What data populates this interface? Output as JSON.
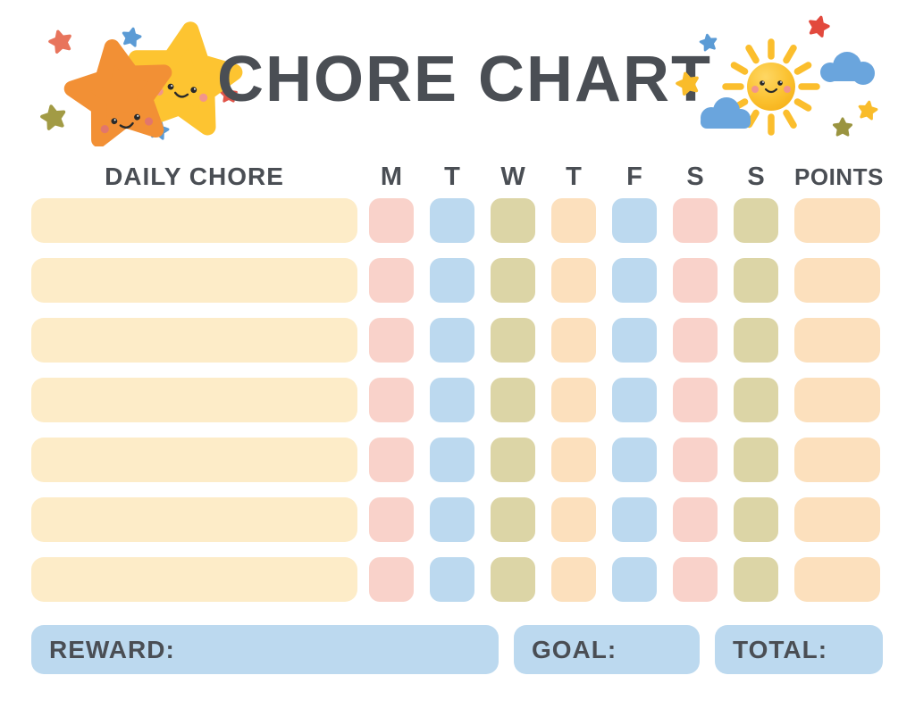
{
  "title": "CHORE CHART",
  "colors": {
    "text": "#4a4e54",
    "pink": "#f9d2ca",
    "blue": "#bcd9ef",
    "olive": "#dcd5a6",
    "peach": "#fce0bd",
    "cream": "#fdecc8",
    "footer_blue": "#bcd9ef"
  },
  "table": {
    "chore_header": "DAILY CHORE",
    "day_headers": [
      "M",
      "T",
      "W",
      "T",
      "F",
      "S",
      "S"
    ],
    "points_header": "POINTS",
    "row_count": 7,
    "chore_cell_color": "cream",
    "day_cell_colors": [
      "pink",
      "blue",
      "olive",
      "peach",
      "blue",
      "pink",
      "olive"
    ],
    "points_cell_color": "peach",
    "rows": [
      {
        "chore": "",
        "days": [
          "",
          "",
          "",
          "",
          "",
          "",
          ""
        ],
        "points": ""
      },
      {
        "chore": "",
        "days": [
          "",
          "",
          "",
          "",
          "",
          "",
          ""
        ],
        "points": ""
      },
      {
        "chore": "",
        "days": [
          "",
          "",
          "",
          "",
          "",
          "",
          ""
        ],
        "points": ""
      },
      {
        "chore": "",
        "days": [
          "",
          "",
          "",
          "",
          "",
          "",
          ""
        ],
        "points": ""
      },
      {
        "chore": "",
        "days": [
          "",
          "",
          "",
          "",
          "",
          "",
          ""
        ],
        "points": ""
      },
      {
        "chore": "",
        "days": [
          "",
          "",
          "",
          "",
          "",
          "",
          ""
        ],
        "points": ""
      },
      {
        "chore": "",
        "days": [
          "",
          "",
          "",
          "",
          "",
          "",
          ""
        ],
        "points": ""
      }
    ]
  },
  "footer": {
    "reward_label": "REWARD:",
    "goal_label": "GOAL:",
    "total_label": "TOTAL:"
  },
  "decorations": {
    "left": [
      "orange-star-icon",
      "yellow-star-icon",
      "small-stars-icons"
    ],
    "right": [
      "sun-icon",
      "cloud-icons",
      "small-stars-icons"
    ],
    "star_colors": {
      "orange": "#f29035",
      "yellow": "#fdc431",
      "red_orange": "#e8745c",
      "red": "#e2493d",
      "small_blue": "#5b9bd5",
      "small_olive": "#a29b45",
      "cheek": "#f2958c",
      "cloud_blue": "#6aa5dd",
      "sun_ray": "#fbbe2d"
    }
  }
}
